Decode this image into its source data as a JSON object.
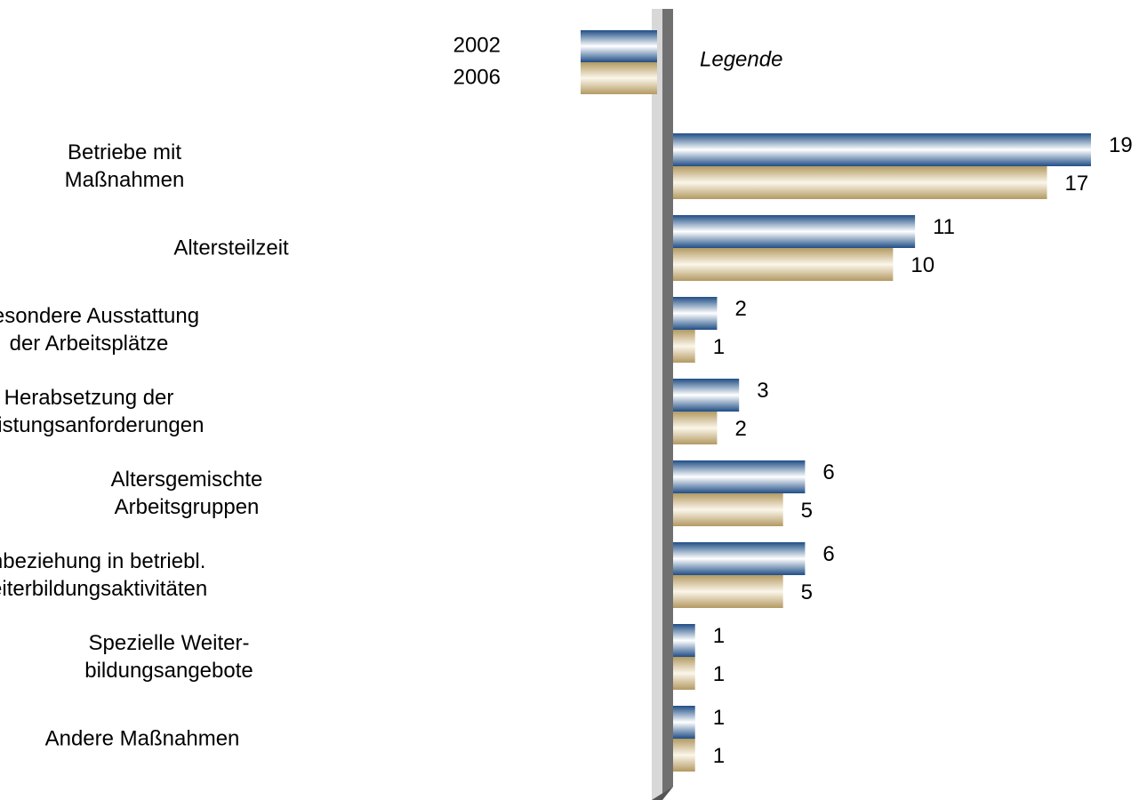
{
  "chart_data": {
    "type": "hbar",
    "legend_title": "Legende",
    "categories": [
      "Betriebe mit\nMaßnahmen",
      "Altersteilzeit",
      "Besondere Ausstattung\nder Arbeitsplätze",
      "Herabsetzung der\nLeistungsanforderungen",
      "Altersgemischte\nArbeitsgruppen",
      "Einbeziehung in betriebl.\nWeiterbildungsaktivitäten",
      "Spezielle Weiter-\nbildungsangebote",
      "Andere Maßnahmen"
    ],
    "series": [
      {
        "name": "2002",
        "color": "#1f4e86",
        "values": [
          19,
          11,
          2,
          3,
          6,
          6,
          1,
          1
        ]
      },
      {
        "name": "2006",
        "color": "#b39a62",
        "values": [
          17,
          10,
          1,
          2,
          5,
          5,
          1,
          1
        ]
      }
    ]
  }
}
